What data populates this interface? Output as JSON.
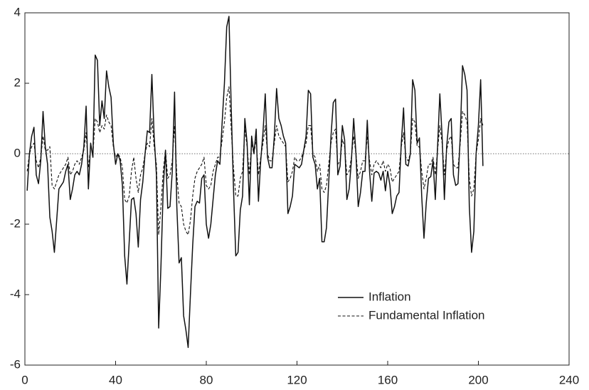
{
  "chart_data": {
    "type": "line",
    "x": [
      1,
      2,
      3,
      4,
      5,
      6,
      7,
      8,
      9,
      10,
      11,
      12,
      13,
      14,
      15,
      16,
      17,
      18,
      19,
      20,
      21,
      22,
      23,
      24,
      25,
      26,
      27,
      28,
      29,
      30,
      31,
      32,
      33,
      34,
      35,
      36,
      37,
      38,
      39,
      40,
      41,
      42,
      43,
      44,
      45,
      46,
      47,
      48,
      49,
      50,
      51,
      52,
      53,
      54,
      55,
      56,
      57,
      58,
      59,
      60,
      61,
      62,
      63,
      64,
      65,
      66,
      67,
      68,
      69,
      70,
      71,
      72,
      73,
      74,
      75,
      76,
      77,
      78,
      79,
      80,
      81,
      82,
      83,
      84,
      85,
      86,
      87,
      88,
      89,
      90,
      91,
      92,
      93,
      94,
      95,
      96,
      97,
      98,
      99,
      100,
      101,
      102,
      103,
      104,
      105,
      106,
      107,
      108,
      109,
      110,
      111,
      112,
      113,
      114,
      115,
      116,
      117,
      118,
      119,
      120,
      121,
      122,
      123,
      124,
      125,
      126,
      127,
      128,
      129,
      130,
      131,
      132,
      133,
      134,
      135,
      136,
      137,
      138,
      139,
      140,
      141,
      142,
      143,
      144,
      145,
      146,
      147,
      148,
      149,
      150,
      151,
      152,
      153,
      154,
      155,
      156,
      157,
      158,
      159,
      160,
      161,
      162,
      163,
      164,
      165,
      166,
      167,
      168,
      169,
      170,
      171,
      172,
      173,
      174,
      175,
      176,
      177,
      178,
      179,
      180,
      181,
      182,
      183,
      184,
      185,
      186,
      187,
      188,
      189,
      190,
      191,
      192,
      193,
      194,
      195,
      196,
      197,
      198,
      199,
      200,
      201,
      202
    ],
    "series": [
      {
        "name": "Inflation",
        "color": "#111111",
        "style": "solid",
        "values": [
          -1.05,
          0.0,
          0.5,
          0.75,
          -0.6,
          -0.85,
          -0.2,
          1.2,
          0.2,
          -0.3,
          -1.8,
          -2.2,
          -2.8,
          -1.9,
          -1.0,
          -0.9,
          -0.8,
          -0.5,
          -0.3,
          -1.3,
          -1.0,
          -0.6,
          -0.5,
          -0.6,
          -0.3,
          0.2,
          1.35,
          -1.0,
          0.3,
          -0.1,
          2.8,
          2.65,
          0.8,
          1.5,
          1.0,
          2.35,
          1.9,
          1.6,
          0.3,
          -0.3,
          0.0,
          -0.2,
          -0.9,
          -2.9,
          -3.7,
          -2.5,
          -1.3,
          -1.25,
          -1.7,
          -2.65,
          -1.3,
          -0.8,
          0.0,
          0.65,
          0.6,
          2.25,
          0.5,
          -0.6,
          -4.95,
          -3.2,
          -1.0,
          0.1,
          -1.55,
          -1.5,
          -0.5,
          1.75,
          -1.5,
          -3.1,
          -2.95,
          -4.6,
          -5.0,
          -5.5,
          -4.0,
          -2.6,
          -1.5,
          -1.35,
          -1.4,
          -0.7,
          -0.6,
          -2.0,
          -2.4,
          -2.0,
          -1.3,
          -0.6,
          -0.2,
          -0.3,
          0.9,
          2.0,
          3.6,
          3.9,
          1.3,
          -1.0,
          -2.9,
          -2.8,
          -1.6,
          -1.2,
          1.0,
          0.3,
          -1.45,
          0.5,
          0.0,
          0.7,
          -1.35,
          -0.2,
          0.6,
          1.7,
          -0.1,
          -0.4,
          -0.4,
          0.5,
          1.85,
          1.0,
          0.8,
          0.5,
          0.3,
          -1.7,
          -1.5,
          -1.2,
          -0.3,
          -0.35,
          -0.4,
          -0.3,
          0.1,
          0.5,
          1.8,
          1.7,
          -0.1,
          -0.3,
          -1.0,
          -0.7,
          -2.5,
          -2.5,
          -2.1,
          -0.8,
          0.5,
          1.45,
          1.55,
          -0.6,
          -0.35,
          0.8,
          0.4,
          -1.3,
          -1.0,
          -0.2,
          1.0,
          0.0,
          -1.5,
          -1.1,
          -0.5,
          -0.5,
          0.95,
          -0.5,
          -1.35,
          -0.55,
          -0.5,
          -0.55,
          -0.75,
          -0.5,
          -1.05,
          -0.5,
          -0.9,
          -1.7,
          -1.5,
          -1.2,
          -1.1,
          0.3,
          1.3,
          -0.3,
          -0.35,
          0.0,
          2.1,
          1.8,
          0.3,
          0.45,
          -1.2,
          -2.4,
          -1.4,
          -0.7,
          -0.65,
          -0.2,
          -1.3,
          0.2,
          1.7,
          0.5,
          -1.3,
          0.2,
          0.9,
          1.0,
          -0.6,
          -0.9,
          -0.85,
          0.5,
          2.5,
          2.25,
          1.8,
          -1.5,
          -2.8,
          -2.2,
          0.0,
          0.8,
          2.1,
          -0.35
        ]
      },
      {
        "name": "Fundamental Inflation",
        "color": "#111111",
        "style": "dashed",
        "values": [
          -0.5,
          0.0,
          0.2,
          0.3,
          -0.2,
          -0.4,
          -0.1,
          0.5,
          0.1,
          0.1,
          0.2,
          -0.9,
          -1.0,
          -0.8,
          -0.6,
          -0.5,
          -0.4,
          -0.3,
          -0.1,
          -0.6,
          -0.5,
          -0.3,
          -0.2,
          -0.3,
          -0.1,
          0.1,
          0.6,
          -0.4,
          0.2,
          0.0,
          1.0,
          0.9,
          0.6,
          0.8,
          0.7,
          1.1,
          0.9,
          0.8,
          0.2,
          -0.1,
          0.0,
          -0.1,
          -0.4,
          -1.3,
          -1.4,
          -1.2,
          -0.5,
          -0.1,
          -0.7,
          -1.1,
          -0.6,
          -0.4,
          0.0,
          0.3,
          0.2,
          1.0,
          0.2,
          -0.3,
          -2.3,
          -1.5,
          -0.5,
          0.1,
          -0.7,
          -0.6,
          -0.2,
          0.8,
          -0.6,
          -1.4,
          -1.5,
          -2.0,
          -2.2,
          -2.3,
          -1.9,
          -1.2,
          -0.7,
          -0.5,
          -0.4,
          -0.3,
          -0.1,
          -0.9,
          -1.0,
          -0.9,
          -0.5,
          -0.3,
          -0.1,
          -0.1,
          0.4,
          0.9,
          1.6,
          1.9,
          0.7,
          -0.4,
          -1.2,
          -1.2,
          -0.7,
          -0.5,
          0.7,
          0.2,
          -0.6,
          0.3,
          0.0,
          0.4,
          -0.6,
          -0.1,
          0.3,
          0.8,
          0.0,
          -0.2,
          -0.2,
          0.3,
          0.8,
          0.5,
          0.4,
          0.3,
          0.2,
          -0.8,
          -0.7,
          -0.5,
          -0.1,
          -0.2,
          -0.2,
          -0.1,
          0.1,
          0.3,
          0.8,
          0.8,
          0.0,
          -0.1,
          -0.5,
          -0.3,
          -1.0,
          -1.1,
          -0.9,
          -0.3,
          0.3,
          0.6,
          0.7,
          -0.3,
          -0.2,
          0.4,
          0.2,
          -0.6,
          -0.5,
          -0.1,
          0.5,
          0.0,
          -0.7,
          -0.5,
          -0.2,
          -0.2,
          0.5,
          -0.2,
          -0.6,
          -0.3,
          -0.2,
          -0.3,
          -0.4,
          -0.2,
          -0.5,
          -0.3,
          -0.4,
          -0.8,
          -0.7,
          -0.6,
          -0.5,
          0.2,
          0.6,
          -0.1,
          -0.2,
          0.0,
          1.0,
          0.9,
          0.2,
          0.2,
          -0.5,
          -1.0,
          -0.7,
          -0.3,
          -0.3,
          -0.1,
          -0.6,
          0.1,
          0.8,
          0.3,
          -0.6,
          0.1,
          0.4,
          0.5,
          -0.3,
          -0.4,
          -0.4,
          0.3,
          1.2,
          1.1,
          0.9,
          -0.7,
          -1.2,
          -1.0,
          0.0,
          0.4,
          1.0,
          0.8
        ]
      }
    ],
    "xlim": [
      0,
      240
    ],
    "xticks": [
      0,
      40,
      80,
      120,
      160,
      200,
      240
    ],
    "ylim": [
      -6,
      4
    ],
    "yticks": [
      -6,
      -4,
      -2,
      0,
      2,
      4
    ],
    "zero_line": true,
    "legend": "lower right"
  }
}
